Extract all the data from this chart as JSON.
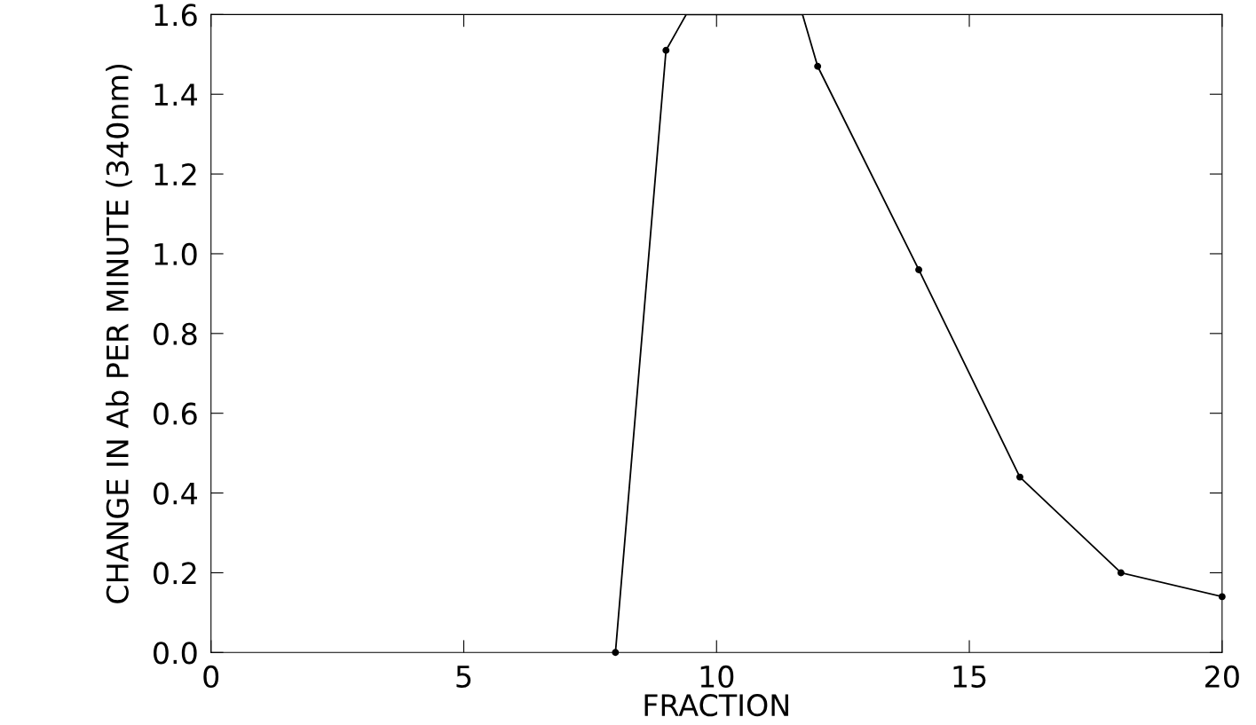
{
  "chart_data": {
    "type": "line",
    "xlabel": "FRACTION",
    "ylabel": "CHANGE IN Ab PER MINUTE (340nm)",
    "series": [
      {
        "color": "#000000",
        "marker": "none",
        "x": [
          8,
          9,
          9.4,
          11.7,
          12,
          14,
          16,
          18,
          20
        ],
        "values": [
          0,
          1.51,
          1.6,
          1.6,
          1.47,
          0.96,
          0.44,
          0.2,
          0.14
        ]
      },
      {
        "type": "scatter",
        "color": "#000000",
        "marker": "circle",
        "x": [
          8,
          9,
          12,
          14,
          16,
          18,
          20
        ],
        "values": [
          0,
          1.51,
          1.47,
          0.96,
          0.44,
          0.2,
          0.14
        ]
      }
    ],
    "xlim": [
      0,
      20
    ],
    "xticks": [
      0,
      5,
      10,
      15,
      20
    ],
    "ylim": [
      0,
      1.6
    ],
    "yticks": [
      {
        "value": 0,
        "label": "0.0"
      },
      {
        "value": 0.2,
        "label": "0.2"
      },
      {
        "value": 0.4,
        "label": "0.4"
      },
      {
        "value": 0.6,
        "label": "0.6"
      },
      {
        "value": 0.8,
        "label": "0.8"
      },
      {
        "value": 1.0,
        "label": "1.0"
      },
      {
        "value": 1.2,
        "label": "1.2"
      },
      {
        "value": 1.4,
        "label": "1.4"
      },
      {
        "value": 1.6,
        "label": "1.6"
      }
    ],
    "grid": false,
    "legend": false
  }
}
